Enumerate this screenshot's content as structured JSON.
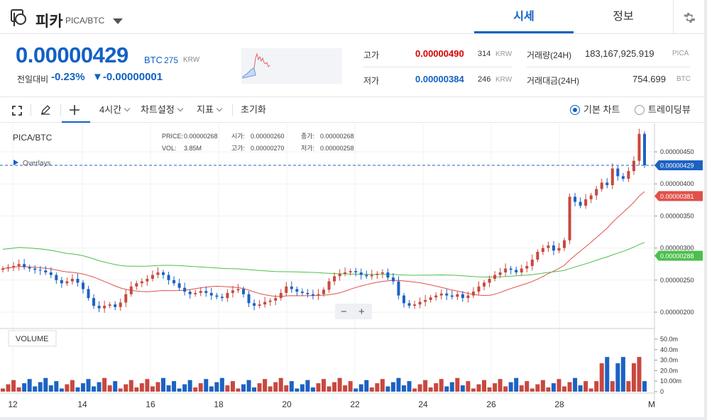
{
  "header": {
    "coin_name": "피카",
    "pair": "PICA/BTC",
    "tabs": [
      {
        "label": "시세",
        "active": true
      },
      {
        "label": "정보",
        "active": false
      }
    ]
  },
  "price": {
    "value": "0.00000429",
    "unit": "BTC",
    "krw": "275",
    "krw_unit": "KRW",
    "change_label": "전일대비",
    "change_pct": "-0.23%",
    "change_abs": "▼-0.00000001"
  },
  "stats": {
    "high_label": "고가",
    "high_value": "0.00000490",
    "high_krw": "314",
    "krw_unit": "KRW",
    "low_label": "저가",
    "low_value": "0.00000384",
    "low_krw": "246",
    "volume_label": "거래량(24H)",
    "volume_value": "183,167,925.919",
    "volume_unit": "PICA",
    "amount_label": "거래대금(24H)",
    "amount_value": "754.699",
    "amount_unit": "BTC"
  },
  "toolbar": {
    "interval": "4시간",
    "chart_settings": "차트설정",
    "indicators": "지표",
    "reset": "초기화",
    "mode_basic": "기본 차트",
    "mode_tradingview": "트레이딩뷰"
  },
  "colors": {
    "up": "#c8483e",
    "down": "#1c62c3",
    "ma_short": "#e0514a",
    "ma_long": "#4cbf4c",
    "accent": "#1261c4"
  },
  "chart_data": {
    "type": "candlestick",
    "symbol": "PICA/BTC",
    "legend": {
      "price_label": "PRICE:",
      "price": "0.00000268",
      "open_label": "시가:",
      "open": "0.00000260",
      "close_label": "종가:",
      "close": "0.00000268",
      "vol_label": "VOL:",
      "vol": "3.85M",
      "high_label": "고가:",
      "high": "0.00000270",
      "low_label": "저가:",
      "low": "0.00000258"
    },
    "overlays_label": "Overlays",
    "y_ticks": [
      "0.00000450",
      "0.00000400",
      "0.00000350",
      "0.00000300",
      "0.00000250",
      "0.00000200"
    ],
    "y_tick_values": [
      450,
      400,
      350,
      300,
      250,
      200
    ],
    "x_ticks": [
      "12",
      "14",
      "16",
      "18",
      "20",
      "22",
      "24",
      "26",
      "28",
      "M"
    ],
    "markers": [
      {
        "label": "0.00000429",
        "value": 429,
        "color": "#1c62c3"
      },
      {
        "label": "0.00000381",
        "value": 381,
        "color": "#e0514a"
      },
      {
        "label": "0.00000288",
        "value": 288,
        "color": "#4cbf4c"
      }
    ],
    "volume_label": "VOLUME",
    "volume_ticks": [
      "50.0m",
      "40.0m",
      "30.0m",
      "20.0m",
      "10.00m",
      "0"
    ],
    "volume_tick_values": [
      50,
      40,
      30,
      20,
      10,
      0
    ],
    "zoom_minus": "−",
    "zoom_plus": "+"
  }
}
